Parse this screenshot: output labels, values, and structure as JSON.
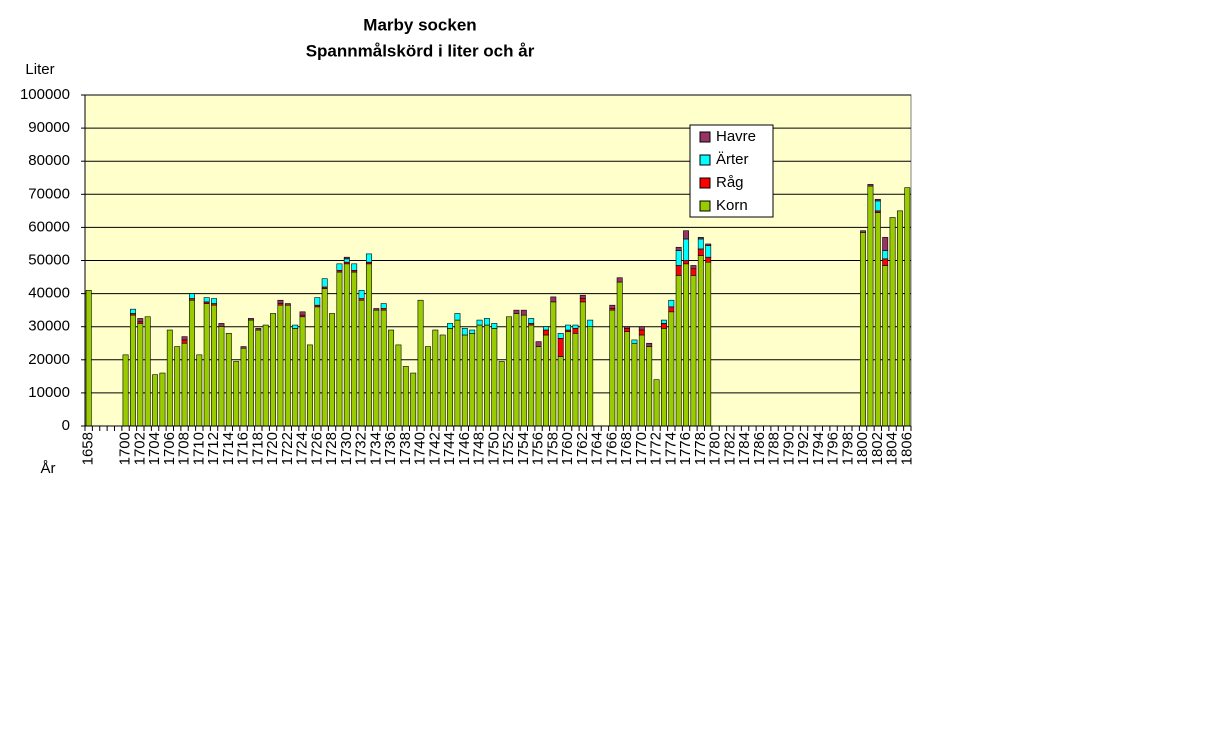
{
  "chart_data": {
    "type": "stacked_bar",
    "title": "Marby socken",
    "subtitle": "Spannmålskörd i liter och år",
    "y_label": "Liter",
    "x_label": "År",
    "categories": [
      "1658",
      null,
      null,
      null,
      null,
      "1700",
      null,
      "1702",
      null,
      "1704",
      null,
      "1706",
      null,
      "1708",
      null,
      "1710",
      null,
      "1712",
      null,
      "1714",
      null,
      "1716",
      null,
      "1718",
      null,
      "1720",
      null,
      "1722",
      null,
      "1724",
      null,
      "1726",
      null,
      "1728",
      null,
      "1730",
      null,
      "1732",
      null,
      "1734",
      null,
      "1736",
      null,
      "1738",
      null,
      "1740",
      null,
      "1742",
      null,
      "1744",
      null,
      "1746",
      null,
      "1748",
      null,
      "1750",
      null,
      "1752",
      null,
      "1754",
      null,
      "1756",
      null,
      "1758",
      null,
      "1760",
      null,
      "1762",
      null,
      "1764",
      null,
      "1766",
      null,
      "1768",
      null,
      "1770",
      null,
      "1772",
      null,
      "1774",
      null,
      "1776",
      null,
      "1778",
      null,
      "1780",
      null,
      "1782",
      null,
      "1784",
      null,
      "1786",
      null,
      "1788",
      null,
      "1790",
      null,
      "1792",
      null,
      "1794",
      null,
      "1796",
      null,
      "1798",
      null,
      "1800",
      null,
      "1802",
      null,
      "1804",
      null,
      "1806"
    ],
    "series": [
      {
        "name": "Korn",
        "color": "#99cc00",
        "values": [
          41000,
          null,
          null,
          null,
          null,
          21500,
          33500,
          31000,
          33000,
          15500,
          16000,
          29000,
          24000,
          25000,
          38000,
          21500,
          37000,
          36500,
          30000,
          28000,
          19500,
          23500,
          32000,
          29000,
          30500,
          34000,
          36500,
          36500,
          29500,
          33000,
          24500,
          36000,
          41500,
          34000,
          46500,
          49000,
          46500,
          38000,
          49000,
          35000,
          35000,
          29000,
          24500,
          18000,
          16000,
          38000,
          24000,
          29000,
          27500,
          29500,
          32000,
          27500,
          28000,
          30500,
          30500,
          29500,
          19500,
          33000,
          34000,
          33500,
          30500,
          24000,
          27500,
          37500,
          21000,
          28500,
          28000,
          37500,
          30000,
          null,
          null,
          35000,
          43500,
          28500,
          25000,
          27500,
          24000,
          14000,
          29500,
          34500,
          45500,
          49000,
          45500,
          51500,
          49500,
          null,
          null,
          null,
          null,
          null,
          null,
          null,
          null,
          null,
          null,
          null,
          null,
          null,
          null,
          null,
          null,
          null,
          null,
          null,
          null,
          58500,
          72500,
          64500,
          48500,
          63000,
          65000,
          72000
        ]
      },
      {
        "name": "Råg",
        "color": "#ff0000",
        "values": [
          0,
          null,
          null,
          null,
          null,
          0,
          500,
          500,
          0,
          0,
          0,
          0,
          0,
          1000,
          500,
          0,
          500,
          500,
          0,
          0,
          0,
          0,
          0,
          0,
          0,
          0,
          500,
          0,
          0,
          500,
          0,
          500,
          500,
          0,
          500,
          500,
          500,
          500,
          500,
          0,
          500,
          0,
          0,
          0,
          0,
          0,
          0,
          0,
          0,
          0,
          0,
          0,
          0,
          0,
          0,
          0,
          0,
          0,
          0,
          0,
          500,
          0,
          1500,
          0,
          5500,
          500,
          1500,
          1000,
          0,
          null,
          null,
          500,
          0,
          1000,
          0,
          1500,
          0,
          0,
          1500,
          1500,
          3000,
          1000,
          2000,
          2000,
          1500,
          null,
          null,
          null,
          null,
          null,
          null,
          null,
          null,
          null,
          null,
          null,
          null,
          null,
          null,
          null,
          null,
          null,
          null,
          null,
          null,
          0,
          0,
          500,
          2000,
          0,
          0,
          0
        ]
      },
      {
        "name": "Ärter",
        "color": "#00ffff",
        "values": [
          0,
          null,
          null,
          null,
          null,
          0,
          1300,
          0,
          0,
          0,
          0,
          0,
          0,
          0,
          1500,
          0,
          1300,
          1500,
          0,
          0,
          0,
          0,
          0,
          0,
          0,
          0,
          0,
          0,
          1000,
          0,
          0,
          2300,
          2500,
          0,
          2000,
          1000,
          2000,
          2500,
          2500,
          0,
          1500,
          0,
          0,
          0,
          0,
          0,
          0,
          0,
          0,
          1500,
          2000,
          2000,
          1000,
          1500,
          2000,
          1500,
          0,
          0,
          0,
          0,
          1500,
          0,
          1000,
          0,
          1500,
          1500,
          1000,
          0,
          2000,
          null,
          null,
          0,
          0,
          0,
          1000,
          0,
          0,
          0,
          1000,
          2000,
          4500,
          6500,
          0,
          3000,
          3500,
          null,
          null,
          null,
          null,
          null,
          null,
          null,
          null,
          null,
          null,
          null,
          null,
          null,
          null,
          null,
          null,
          null,
          null,
          null,
          null,
          0,
          0,
          3000,
          2500,
          0,
          0,
          0
        ]
      },
      {
        "name": "Havre",
        "color": "#993366",
        "values": [
          0,
          null,
          null,
          null,
          null,
          0,
          0,
          1000,
          0,
          0,
          0,
          0,
          0,
          1000,
          0,
          0,
          0,
          0,
          1000,
          0,
          0,
          500,
          500,
          500,
          0,
          0,
          1000,
          500,
          0,
          1000,
          0,
          0,
          0,
          0,
          0,
          500,
          0,
          0,
          0,
          500,
          0,
          0,
          0,
          0,
          0,
          0,
          0,
          0,
          0,
          0,
          0,
          0,
          0,
          0,
          0,
          0,
          0,
          0,
          1000,
          1500,
          0,
          1500,
          0,
          1500,
          0,
          0,
          0,
          1000,
          0,
          null,
          null,
          1000,
          1300,
          500,
          0,
          1000,
          1000,
          0,
          0,
          0,
          1000,
          2500,
          1000,
          500,
          500,
          null,
          null,
          null,
          null,
          null,
          null,
          null,
          null,
          null,
          null,
          null,
          null,
          null,
          null,
          null,
          null,
          null,
          null,
          null,
          null,
          500,
          500,
          500,
          4000,
          0,
          0,
          0
        ]
      }
    ],
    "ylim": [
      0,
      100000
    ],
    "yticks": [
      0,
      10000,
      20000,
      30000,
      40000,
      50000,
      60000,
      70000,
      80000,
      90000,
      100000
    ],
    "grid": true,
    "plot_background": "#ffffcc"
  }
}
